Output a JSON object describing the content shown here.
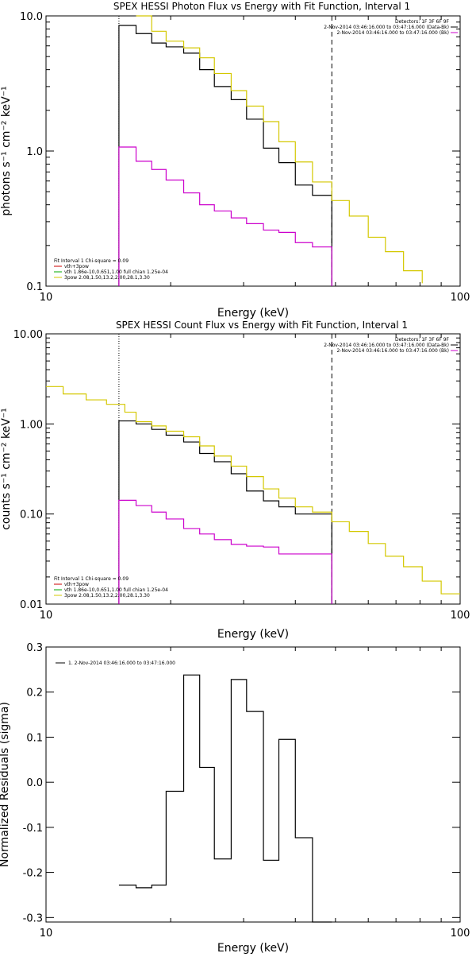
{
  "chart_data": [
    {
      "type": "line",
      "title": "SPEX HESSI Photon Flux vs Energy with Fit Function, Interval 1",
      "xlabel": "Energy (keV)",
      "ylabel": "photons s⁻¹ cm⁻² keV⁻¹",
      "xscale": "log",
      "yscale": "log",
      "xlim": [
        10,
        100
      ],
      "ylim": [
        0.1,
        10
      ],
      "xticks": [
        {
          "v": 10,
          "label": "10"
        },
        {
          "v": 100,
          "label": "100"
        }
      ],
      "yticks": [
        {
          "v": 0.1,
          "label": "0.1"
        },
        {
          "v": 1,
          "label": "1.0"
        },
        {
          "v": 10,
          "label": "10.0"
        }
      ],
      "fit_range": [
        15,
        49
      ],
      "info_top_right": [
        "Detectors: 1F 3F 6F 9F",
        "2-Nov-2014 03:46:16.000 to 03:47:16.000 (Data-Bk)",
        "2-Nov-2014 03:46:16.000 to 03:47:16.000 (Bk)"
      ],
      "legend_bottom_left": {
        "header": "Fit Interval 1   Chi-square = 0.09",
        "entries": [
          {
            "text": "vth+3pow",
            "color": "#cc0000"
          },
          {
            "text": "vth 1.86e-10,0.651,1.00  full chian 1.25e-04",
            "color": "#00aa00"
          },
          {
            "text": "3pow 2.08,1.50,13.2,2.00,28.1,3.30",
            "color": "#d4c800"
          }
        ]
      },
      "series": [
        {
          "name": "2-Nov-2014 03:46:16.000 to 03:47:16.000 (Data-Bk)",
          "color": "#000000",
          "edges": [
            15,
            16.5,
            18,
            19.5,
            21.5,
            23.5,
            25.5,
            28,
            30.5,
            33.5,
            36.5,
            40,
            44,
            49
          ],
          "values": [
            8.5,
            7.4,
            6.3,
            5.9,
            5.3,
            4.0,
            3.0,
            2.4,
            1.72,
            1.05,
            0.82,
            0.56,
            0.47
          ]
        },
        {
          "name": "2-Nov-2014 03:46:16.000 to 03:47:16.000 (Bk)",
          "color": "#cc00cc",
          "edges": [
            15,
            16.5,
            18,
            19.5,
            21.5,
            23.5,
            25.5,
            28,
            30.5,
            33.5,
            36.5,
            40,
            44,
            49
          ],
          "values": [
            1.07,
            0.84,
            0.73,
            0.61,
            0.49,
            0.4,
            0.36,
            0.32,
            0.29,
            0.26,
            0.25,
            0.21,
            0.195
          ]
        },
        {
          "name": "vth+3pow model",
          "color": "#d4c800",
          "edges": [
            16.5,
            18,
            19.5,
            21.5,
            23.5,
            25.5,
            28,
            30.5,
            33.5,
            36.5,
            40,
            44,
            49,
            54,
            60,
            66,
            73,
            81
          ],
          "values": [
            10.0,
            7.7,
            6.5,
            5.8,
            4.9,
            3.75,
            2.8,
            2.15,
            1.65,
            1.17,
            0.83,
            0.59,
            0.43,
            0.33,
            0.23,
            0.18,
            0.13,
            0.105
          ]
        }
      ]
    },
    {
      "type": "line",
      "title": "SPEX HESSI Count Flux vs Energy with Fit Function, Interval 1",
      "xlabel": "Energy (keV)",
      "ylabel": "counts s⁻¹ cm⁻² keV⁻¹",
      "xscale": "log",
      "yscale": "log",
      "xlim": [
        10,
        100
      ],
      "ylim": [
        0.01,
        10
      ],
      "xticks": [
        {
          "v": 10,
          "label": "10"
        },
        {
          "v": 100,
          "label": "100"
        }
      ],
      "yticks": [
        {
          "v": 0.01,
          "label": "0.01"
        },
        {
          "v": 0.1,
          "label": "0.10"
        },
        {
          "v": 1,
          "label": "1.00"
        },
        {
          "v": 10,
          "label": "10.00"
        }
      ],
      "fit_range": [
        15,
        49
      ],
      "info_top_right": [
        "Detectors: 1F 3F 6F 9F",
        "2-Nov-2014 03:46:16.000 to 03:47:16.000 (Data-Bk)",
        "2-Nov-2014 03:46:16.000 to 03:47:16.000 (Bk)"
      ],
      "legend_bottom_left": {
        "header": "Fit Interval 1   Chi-square = 0.09",
        "entries": [
          {
            "text": "vth+3pow",
            "color": "#cc0000"
          },
          {
            "text": "vth 1.86e-10,0.651,1.00  full chian 1.25e-04",
            "color": "#00aa00"
          },
          {
            "text": "3pow 2.08,1.50,13.2,2.00,28.1,3.30",
            "color": "#d4c800"
          }
        ]
      },
      "series": [
        {
          "name": "2-Nov-2014 03:46:16.000 to 03:47:16.000 (Data-Bk)",
          "color": "#000000",
          "edges": [
            15,
            16.5,
            18,
            19.5,
            21.5,
            23.5,
            25.5,
            28,
            30.5,
            33.5,
            36.5,
            40,
            44,
            49
          ],
          "values": [
            1.08,
            1.0,
            0.87,
            0.75,
            0.63,
            0.47,
            0.38,
            0.28,
            0.18,
            0.14,
            0.12,
            0.1,
            0.1
          ]
        },
        {
          "name": "2-Nov-2014 03:46:16.000 to 03:47:16.000 (Bk)",
          "color": "#cc00cc",
          "edges": [
            15,
            16.5,
            18,
            19.5,
            21.5,
            23.5,
            25.5,
            28,
            30.5,
            33.5,
            36.5,
            40,
            44,
            49
          ],
          "values": [
            0.142,
            0.124,
            0.105,
            0.088,
            0.069,
            0.06,
            0.052,
            0.046,
            0.044,
            0.043,
            0.036,
            0.036,
            0.036
          ]
        },
        {
          "name": "vth+3pow model",
          "color": "#d4c800",
          "edges": [
            10,
            11,
            12.5,
            14,
            15.5,
            16.5,
            18,
            19.5,
            21.5,
            23.5,
            25.5,
            28,
            30.5,
            33.5,
            36.5,
            40,
            44,
            49,
            54,
            60,
            66,
            73,
            81,
            90,
            100
          ],
          "values": [
            2.6,
            2.15,
            1.85,
            1.65,
            1.35,
            1.06,
            0.95,
            0.83,
            0.72,
            0.57,
            0.44,
            0.34,
            0.26,
            0.19,
            0.15,
            0.12,
            0.105,
            0.082,
            0.064,
            0.047,
            0.034,
            0.026,
            0.018,
            0.013
          ]
        }
      ]
    },
    {
      "type": "line",
      "title": "",
      "xlabel": "Energy (keV)",
      "ylabel": "Normalized Residuals (sigma)",
      "xscale": "log",
      "yscale": "linear",
      "xlim": [
        10,
        100
      ],
      "ylim": [
        -0.31,
        0.3
      ],
      "xticks": [
        {
          "v": 10,
          "label": "10"
        },
        {
          "v": 100,
          "label": "100"
        }
      ],
      "yticks": [
        {
          "v": 0.3,
          "label": "0.3"
        },
        {
          "v": 0.2,
          "label": "0.2"
        },
        {
          "v": 0.1,
          "label": "0.1"
        },
        {
          "v": 0.0,
          "label": "0.0"
        },
        {
          "v": -0.1,
          "label": "-0.1"
        },
        {
          "v": -0.2,
          "label": "-0.2"
        },
        {
          "v": -0.3,
          "label": "-0.3"
        }
      ],
      "legend_top_left": "1. 2-Nov-2014 03:46:16.000 to 03:47:16.000",
      "series": [
        {
          "name": "1. 2-Nov-2014 03:46:16.000 to 03:47:16.000",
          "color": "#000000",
          "edges": [
            15,
            16.5,
            18,
            19.5,
            21.5,
            23.5,
            25.5,
            28,
            30.5,
            33.5,
            36.5,
            40,
            44,
            49
          ],
          "values": [
            -0.228,
            -0.234,
            -0.228,
            -0.02,
            0.238,
            0.033,
            -0.17,
            0.228,
            0.157,
            -0.173,
            0.095,
            -0.123,
            -0.31
          ]
        }
      ]
    }
  ]
}
